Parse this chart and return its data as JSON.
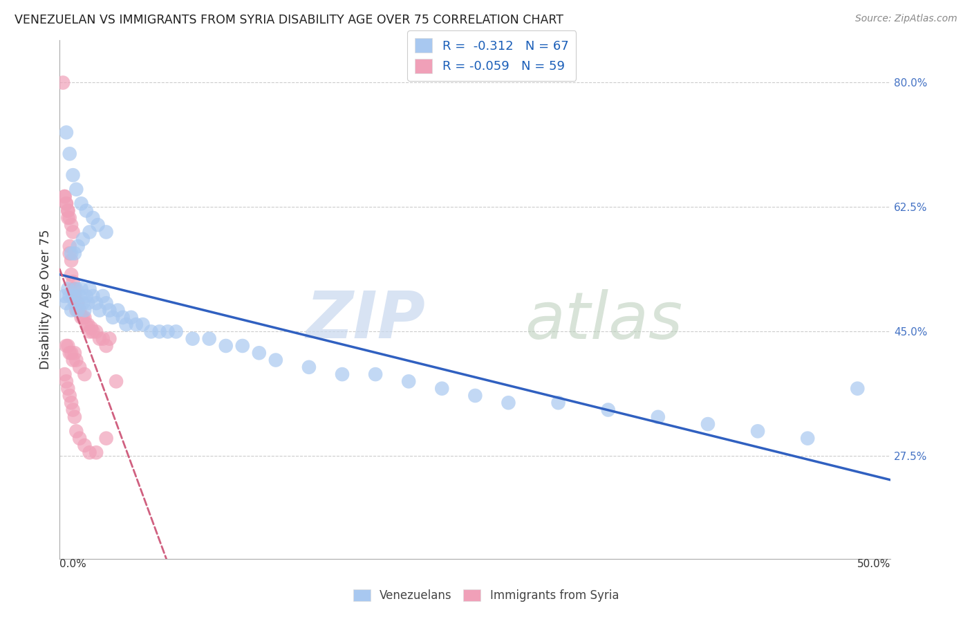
{
  "title": "VENEZUELAN VS IMMIGRANTS FROM SYRIA DISABILITY AGE OVER 75 CORRELATION CHART",
  "source": "Source: ZipAtlas.com",
  "ylabel": "Disability Age Over 75",
  "xlim": [
    0.0,
    0.5
  ],
  "ylim": [
    0.13,
    0.86
  ],
  "yticks": [
    0.275,
    0.45,
    0.625,
    0.8
  ],
  "blue_color": "#a8c8f0",
  "pink_color": "#f0a0b8",
  "line_blue": "#3060c0",
  "line_pink": "#d06080",
  "venezuelan_x": [
    0.003,
    0.004,
    0.005,
    0.006,
    0.007,
    0.008,
    0.009,
    0.01,
    0.011,
    0.012,
    0.013,
    0.014,
    0.015,
    0.016,
    0.017,
    0.018,
    0.02,
    0.022,
    0.024,
    0.026,
    0.028,
    0.03,
    0.032,
    0.035,
    0.038,
    0.04,
    0.043,
    0.046,
    0.05,
    0.055,
    0.06,
    0.065,
    0.07,
    0.08,
    0.09,
    0.1,
    0.11,
    0.12,
    0.13,
    0.15,
    0.17,
    0.19,
    0.21,
    0.23,
    0.25,
    0.27,
    0.3,
    0.33,
    0.36,
    0.39,
    0.42,
    0.45,
    0.48,
    0.004,
    0.006,
    0.008,
    0.01,
    0.013,
    0.016,
    0.02,
    0.007,
    0.009,
    0.011,
    0.014,
    0.018,
    0.023,
    0.028
  ],
  "venezuelan_y": [
    0.5,
    0.49,
    0.51,
    0.5,
    0.48,
    0.5,
    0.49,
    0.51,
    0.48,
    0.5,
    0.51,
    0.49,
    0.48,
    0.5,
    0.49,
    0.51,
    0.5,
    0.49,
    0.48,
    0.5,
    0.49,
    0.48,
    0.47,
    0.48,
    0.47,
    0.46,
    0.47,
    0.46,
    0.46,
    0.45,
    0.45,
    0.45,
    0.45,
    0.44,
    0.44,
    0.43,
    0.43,
    0.42,
    0.41,
    0.4,
    0.39,
    0.39,
    0.38,
    0.37,
    0.36,
    0.35,
    0.35,
    0.34,
    0.33,
    0.32,
    0.31,
    0.3,
    0.37,
    0.73,
    0.7,
    0.67,
    0.65,
    0.63,
    0.62,
    0.61,
    0.56,
    0.56,
    0.57,
    0.58,
    0.59,
    0.6,
    0.59
  ],
  "syria_x": [
    0.002,
    0.003,
    0.004,
    0.005,
    0.005,
    0.006,
    0.006,
    0.007,
    0.007,
    0.008,
    0.008,
    0.009,
    0.009,
    0.01,
    0.01,
    0.011,
    0.012,
    0.013,
    0.014,
    0.015,
    0.016,
    0.017,
    0.018,
    0.019,
    0.02,
    0.022,
    0.024,
    0.026,
    0.028,
    0.03,
    0.003,
    0.004,
    0.005,
    0.006,
    0.007,
    0.008,
    0.009,
    0.01,
    0.012,
    0.015,
    0.018,
    0.022,
    0.028,
    0.034,
    0.003,
    0.004,
    0.005,
    0.006,
    0.007,
    0.008,
    0.004,
    0.005,
    0.006,
    0.007,
    0.008,
    0.009,
    0.01,
    0.012,
    0.015
  ],
  "syria_y": [
    0.8,
    0.64,
    0.63,
    0.62,
    0.61,
    0.57,
    0.56,
    0.55,
    0.53,
    0.52,
    0.51,
    0.5,
    0.51,
    0.49,
    0.48,
    0.49,
    0.48,
    0.47,
    0.47,
    0.47,
    0.46,
    0.46,
    0.45,
    0.455,
    0.45,
    0.45,
    0.44,
    0.44,
    0.43,
    0.44,
    0.39,
    0.38,
    0.37,
    0.36,
    0.35,
    0.34,
    0.33,
    0.31,
    0.3,
    0.29,
    0.28,
    0.28,
    0.3,
    0.38,
    0.64,
    0.63,
    0.62,
    0.61,
    0.6,
    0.59,
    0.43,
    0.43,
    0.42,
    0.42,
    0.41,
    0.42,
    0.41,
    0.4,
    0.39
  ]
}
